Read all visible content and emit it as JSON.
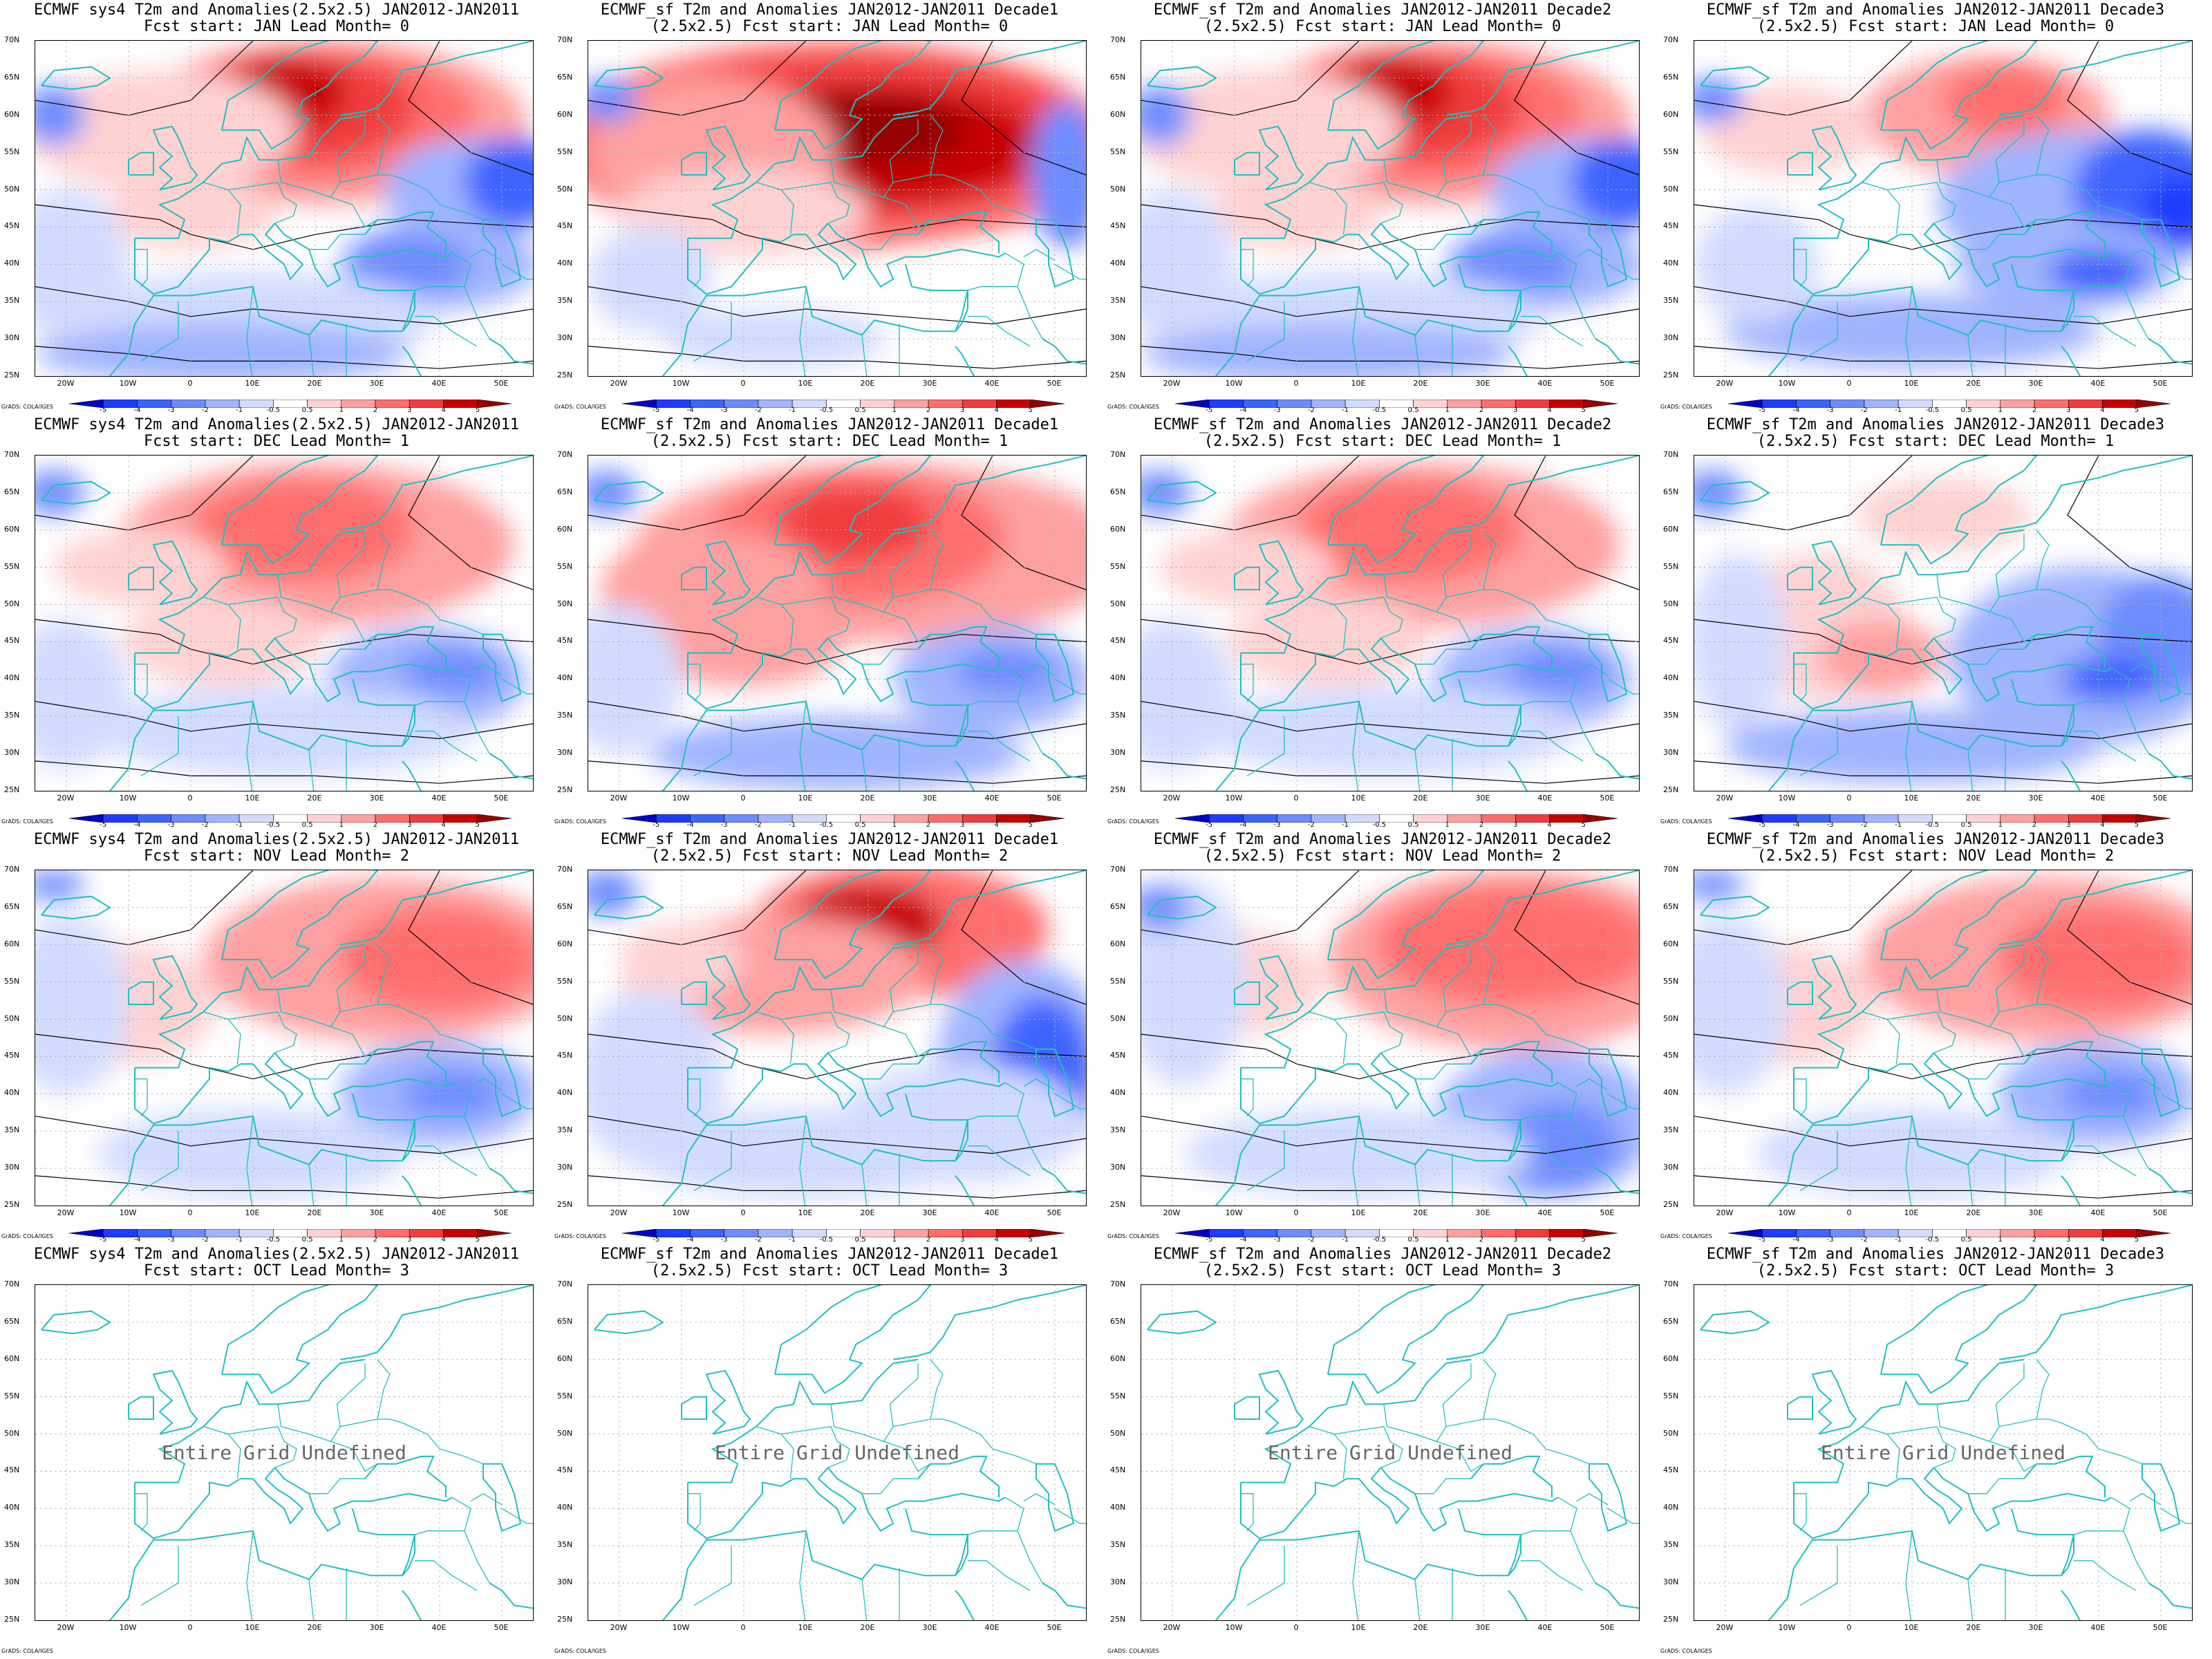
{
  "figure": {
    "lat_labels": [
      "70N",
      "65N",
      "60N",
      "55N",
      "50N",
      "45N",
      "40N",
      "35N",
      "30N",
      "25N"
    ],
    "lon_labels": [
      "20W",
      "10W",
      "0",
      "10E",
      "20E",
      "30E",
      "40E",
      "50E"
    ],
    "colorbar_labels": [
      "-5",
      "-4",
      "-3",
      "-2",
      "-1",
      "-0.5",
      "0.5",
      "1",
      "2",
      "3",
      "4",
      "5"
    ],
    "credit": "GrADS: COLA/IGES",
    "undefined_text": "Entire Grid Undefined",
    "colors": {
      "coast": "#1fbfbf",
      "scale": [
        "#0000c8",
        "#1e3cff",
        "#3c64ff",
        "#6e8cff",
        "#a0b4ff",
        "#d2dcff",
        "#ffffff",
        "#ffd2d2",
        "#ffa0a0",
        "#ff6e6e",
        "#f03c3c",
        "#c80000",
        "#960000"
      ]
    }
  },
  "rows": [
    {
      "lead": "Fcst start: JAN  Lead Month= 0",
      "panels": [
        {
          "t1": "ECMWF sys4 T2m and Anomalies(2.5x2.5) JAN2012-JAN2011",
          "t2": "Fcst start: JAN  Lead Month= 0",
          "pattern": "warm-north-cold-south",
          "undefined": false
        },
        {
          "t1": "ECMWF_sf T2m and Anomalies JAN2012-JAN2011 Decade1",
          "t2": "(2.5x2.5) Fcst start: JAN  Lead Month= 0",
          "pattern": "strong-warm",
          "undefined": false
        },
        {
          "t1": "ECMWF_sf T2m and Anomalies JAN2012-JAN2011 Decade2",
          "t2": "(2.5x2.5) Fcst start: JAN  Lead Month= 0",
          "pattern": "warm-north-cold-south",
          "undefined": false
        },
        {
          "t1": "ECMWF_sf T2m and Anomalies JAN2012-JAN2011 Decade3",
          "t2": "(2.5x2.5) Fcst start: JAN  Lead Month= 0",
          "pattern": "cold-east",
          "undefined": false
        }
      ]
    },
    {
      "lead": "Fcst start: DEC  Lead Month= 1",
      "panels": [
        {
          "t1": "ECMWF sys4 T2m and Anomalies(2.5x2.5) JAN2012-JAN2011",
          "t2": "Fcst start: DEC  Lead Month= 1",
          "pattern": "mild-warm",
          "undefined": false
        },
        {
          "t1": "ECMWF_sf T2m and Anomalies JAN2012-JAN2011 Decade1",
          "t2": "(2.5x2.5) Fcst start: DEC  Lead Month= 1",
          "pattern": "mild-warm-strong",
          "undefined": false
        },
        {
          "t1": "ECMWF_sf T2m and Anomalies JAN2012-JAN2011 Decade2",
          "t2": "(2.5x2.5) Fcst start: DEC  Lead Month= 1",
          "pattern": "mild-warm",
          "undefined": false
        },
        {
          "t1": "ECMWF_sf T2m and Anomalies JAN2012-JAN2011 Decade3",
          "t2": "(2.5x2.5) Fcst start: DEC  Lead Month= 1",
          "pattern": "cold-east-mild",
          "undefined": false
        }
      ]
    },
    {
      "lead": "Fcst start: NOV  Lead Month= 2",
      "panels": [
        {
          "t1": "ECMWF sys4 T2m and Anomalies(2.5x2.5) JAN2012-JAN2011",
          "t2": "Fcst start: NOV  Lead Month= 2",
          "pattern": "mild-warm-east",
          "undefined": false
        },
        {
          "t1": "ECMWF_sf T2m and Anomalies JAN2012-JAN2011 Decade1",
          "t2": "(2.5x2.5) Fcst start: NOV  Lead Month= 2",
          "pattern": "warm-scand-cold-east",
          "undefined": false
        },
        {
          "t1": "ECMWF_sf T2m and Anomalies JAN2012-JAN2011 Decade2",
          "t2": "(2.5x2.5) Fcst start: NOV  Lead Month= 2",
          "pattern": "warm-russia",
          "undefined": false
        },
        {
          "t1": "ECMWF_sf T2m and Anomalies JAN2012-JAN2011 Decade3",
          "t2": "(2.5x2.5) Fcst start: NOV  Lead Month= 2",
          "pattern": "mild-warm-east",
          "undefined": false
        }
      ]
    },
    {
      "lead": "Fcst start: OCT  Lead Month= 3",
      "panels": [
        {
          "t1": "ECMWF sys4 T2m and Anomalies(2.5x2.5) JAN2012-JAN2011",
          "t2": "Fcst start: OCT  Lead Month= 3",
          "pattern": "none",
          "undefined": true
        },
        {
          "t1": "ECMWF_sf T2m and Anomalies JAN2012-JAN2011 Decade1",
          "t2": "(2.5x2.5) Fcst start: OCT  Lead Month= 3",
          "pattern": "none",
          "undefined": true
        },
        {
          "t1": "ECMWF_sf T2m and Anomalies JAN2012-JAN2011 Decade2",
          "t2": "(2.5x2.5) Fcst start: OCT  Lead Month= 3",
          "pattern": "none",
          "undefined": true
        },
        {
          "t1": "ECMWF_sf T2m and Anomalies JAN2012-JAN2011 Decade3",
          "t2": "(2.5x2.5) Fcst start: OCT  Lead Month= 3",
          "pattern": "none",
          "undefined": true
        }
      ]
    }
  ]
}
